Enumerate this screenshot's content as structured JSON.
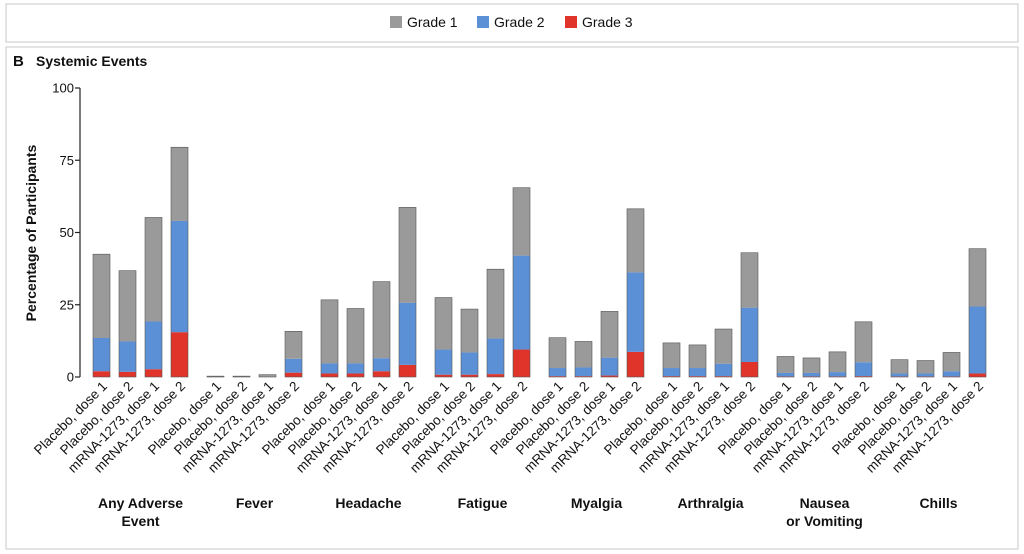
{
  "chart_data": {
    "type": "bar",
    "stacked": true,
    "panel_letter": "B",
    "title": "Systemic Events",
    "ylabel": "Percentage of Participants",
    "xlabel": "",
    "ylim": [
      0,
      100
    ],
    "yticks": [
      0,
      25,
      50,
      75,
      100
    ],
    "grid": false,
    "legend_position": "top-center",
    "series": [
      {
        "name": "Grade 1",
        "color": "#9a9a9a"
      },
      {
        "name": "Grade 2",
        "color": "#5b8fd6"
      },
      {
        "name": "Grade 3",
        "color": "#e0342a"
      }
    ],
    "groups": [
      {
        "label": [
          "Any Adverse",
          "Event"
        ],
        "bars": [
          {
            "label": "Placebo, dose 1",
            "grade1": 29,
            "grade2": 11.5,
            "grade3": 2
          },
          {
            "label": "Placebo, dose 2",
            "grade1": 24.5,
            "grade2": 10.5,
            "grade3": 1.8
          },
          {
            "label": "mRNA-1273, dose 1",
            "grade1": 36,
            "grade2": 16.5,
            "grade3": 2.7
          },
          {
            "label": "mRNA-1273, dose 2",
            "grade1": 25.5,
            "grade2": 38.5,
            "grade3": 15.5
          }
        ]
      },
      {
        "label": [
          "Fever"
        ],
        "bars": [
          {
            "label": "Placebo, dose 1",
            "grade1": 0.3,
            "grade2": 0,
            "grade3": 0
          },
          {
            "label": "Placebo, dose 2",
            "grade1": 0.3,
            "grade2": 0,
            "grade3": 0
          },
          {
            "label": "mRNA-1273, dose 1",
            "grade1": 0.8,
            "grade2": 0,
            "grade3": 0
          },
          {
            "label": "mRNA-1273, dose 2",
            "grade1": 9.5,
            "grade2": 4.8,
            "grade3": 1.5
          }
        ]
      },
      {
        "label": [
          "Headache"
        ],
        "bars": [
          {
            "label": "Placebo, dose 1",
            "grade1": 22,
            "grade2": 3.5,
            "grade3": 1.2
          },
          {
            "label": "Placebo, dose 2",
            "grade1": 19,
            "grade2": 3.5,
            "grade3": 1.2
          },
          {
            "label": "mRNA-1273, dose 1",
            "grade1": 26.5,
            "grade2": 4.5,
            "grade3": 2
          },
          {
            "label": "mRNA-1273, dose 2",
            "grade1": 33,
            "grade2": 21.5,
            "grade3": 4.2
          }
        ]
      },
      {
        "label": [
          "Fatigue"
        ],
        "bars": [
          {
            "label": "Placebo, dose 1",
            "grade1": 18,
            "grade2": 8.7,
            "grade3": 0.8
          },
          {
            "label": "Placebo, dose 2",
            "grade1": 15,
            "grade2": 7.7,
            "grade3": 0.8
          },
          {
            "label": "mRNA-1273, dose 1",
            "grade1": 24,
            "grade2": 12.3,
            "grade3": 1
          },
          {
            "label": "mRNA-1273, dose 2",
            "grade1": 23.5,
            "grade2": 32.5,
            "grade3": 9.5
          }
        ]
      },
      {
        "label": [
          "Myalgia"
        ],
        "bars": [
          {
            "label": "Placebo, dose 1",
            "grade1": 10.5,
            "grade2": 2.8,
            "grade3": 0.3
          },
          {
            "label": "Placebo, dose 2",
            "grade1": 9,
            "grade2": 3,
            "grade3": 0.3
          },
          {
            "label": "mRNA-1273, dose 1",
            "grade1": 16,
            "grade2": 6.2,
            "grade3": 0.5
          },
          {
            "label": "mRNA-1273, dose 2",
            "grade1": 22,
            "grade2": 27.5,
            "grade3": 8.7
          }
        ]
      },
      {
        "label": [
          "Arthralgia"
        ],
        "bars": [
          {
            "label": "Placebo, dose 1",
            "grade1": 8.7,
            "grade2": 2.8,
            "grade3": 0.3
          },
          {
            "label": "Placebo, dose 2",
            "grade1": 8,
            "grade2": 2.8,
            "grade3": 0.3
          },
          {
            "label": "mRNA-1273, dose 1",
            "grade1": 12,
            "grade2": 4.3,
            "grade3": 0.3
          },
          {
            "label": "mRNA-1273, dose 2",
            "grade1": 19,
            "grade2": 18.8,
            "grade3": 5.2
          }
        ]
      },
      {
        "label": [
          "Nausea",
          "or Vomiting"
        ],
        "bars": [
          {
            "label": "Placebo, dose 1",
            "grade1": 5.7,
            "grade2": 1.2,
            "grade3": 0.2
          },
          {
            "label": "Placebo, dose 2",
            "grade1": 5.2,
            "grade2": 1.2,
            "grade3": 0.2
          },
          {
            "label": "mRNA-1273, dose 1",
            "grade1": 7,
            "grade2": 1.5,
            "grade3": 0.2
          },
          {
            "label": "mRNA-1273, dose 2",
            "grade1": 14,
            "grade2": 4.8,
            "grade3": 0.3
          }
        ]
      },
      {
        "label": [
          "Chills"
        ],
        "bars": [
          {
            "label": "Placebo, dose 1",
            "grade1": 4.8,
            "grade2": 1,
            "grade3": 0.2
          },
          {
            "label": "Placebo, dose 2",
            "grade1": 4.5,
            "grade2": 1,
            "grade3": 0.2
          },
          {
            "label": "mRNA-1273, dose 1",
            "grade1": 6.5,
            "grade2": 1.8,
            "grade3": 0.2
          },
          {
            "label": "mRNA-1273, dose 2",
            "grade1": 20,
            "grade2": 23.2,
            "grade3": 1.2
          }
        ]
      }
    ]
  }
}
